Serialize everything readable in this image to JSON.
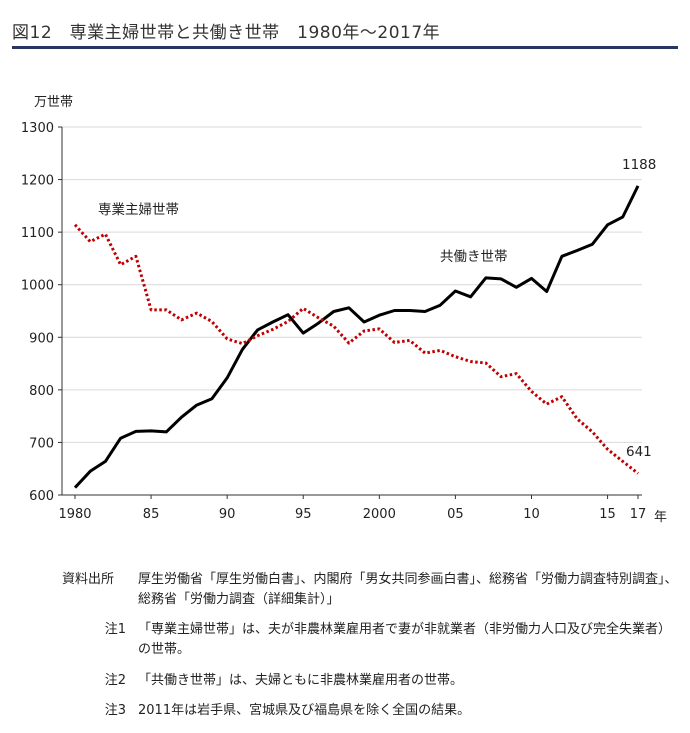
{
  "page": {
    "title": "図12　専業主婦世帯と共働き世帯　1980年～2017年"
  },
  "colors": {
    "title_rule": "#2a3560",
    "dual_income": "#000000",
    "housewife": "#c00000"
  },
  "chart_data": {
    "type": "line",
    "ylabel": "万世帯",
    "x_unit_label": "年",
    "ylim": [
      600,
      1300
    ],
    "y_ticks": [
      600,
      700,
      800,
      900,
      1000,
      1100,
      1200,
      1300
    ],
    "x_tick_labels": [
      {
        "x": 1980,
        "label": "1980"
      },
      {
        "x": 1985,
        "label": "85"
      },
      {
        "x": 1990,
        "label": "90"
      },
      {
        "x": 1995,
        "label": "95"
      },
      {
        "x": 2000,
        "label": "2000"
      },
      {
        "x": 2005,
        "label": "05"
      },
      {
        "x": 2010,
        "label": "10"
      },
      {
        "x": 2015,
        "label": "15"
      },
      {
        "x": 2017,
        "label": "17"
      }
    ],
    "x": [
      1980,
      1981,
      1982,
      1983,
      1984,
      1985,
      1986,
      1987,
      1988,
      1989,
      1990,
      1991,
      1992,
      1993,
      1994,
      1995,
      1996,
      1997,
      1998,
      1999,
      2000,
      2001,
      2002,
      2003,
      2004,
      2005,
      2006,
      2007,
      2008,
      2009,
      2010,
      2011,
      2012,
      2013,
      2014,
      2015,
      2016,
      2017
    ],
    "series": [
      {
        "name": "共働き世帯",
        "style": "solid",
        "values": [
          614,
          645,
          664,
          708,
          721,
          722,
          720,
          748,
          771,
          783,
          823,
          877,
          914,
          929,
          943,
          908,
          927,
          949,
          956,
          929,
          942,
          951,
          951,
          949,
          961,
          988,
          977,
          1013,
          1011,
          995,
          1012,
          987,
          1054,
          1065,
          1077,
          1114,
          1129,
          1188
        ]
      },
      {
        "name": "専業主婦世帯",
        "style": "dotted",
        "values": [
          1114,
          1082,
          1096,
          1038,
          1054,
          952,
          952,
          933,
          946,
          930,
          897,
          888,
          903,
          915,
          930,
          955,
          937,
          921,
          889,
          912,
          916,
          890,
          894,
          870,
          875,
          863,
          854,
          851,
          825,
          831,
          797,
          773,
          787,
          745,
          720,
          687,
          664,
          641
        ]
      }
    ],
    "annotations": {
      "dual_end": "1188",
      "housewife_end": "641"
    }
  },
  "notes": [
    {
      "key": "資料出所",
      "text": "厚生労働省「厚生労働白書」、内閣府「男女共同参画白書」、総務省「労働力調査特別調査」、総務省「労働力調査（詳細集計）」"
    },
    {
      "key": "注1",
      "text": "「専業主婦世帯」は、夫が非農林業雇用者で妻が非就業者（非労働力人口及び完全失業者）の世帯。"
    },
    {
      "key": "注2",
      "text": "「共働き世帯」は、夫婦ともに非農林業雇用者の世帯。"
    },
    {
      "key": "注3",
      "text": "2011年は岩手県、宮城県及び福島県を除く全国の結果。"
    }
  ]
}
